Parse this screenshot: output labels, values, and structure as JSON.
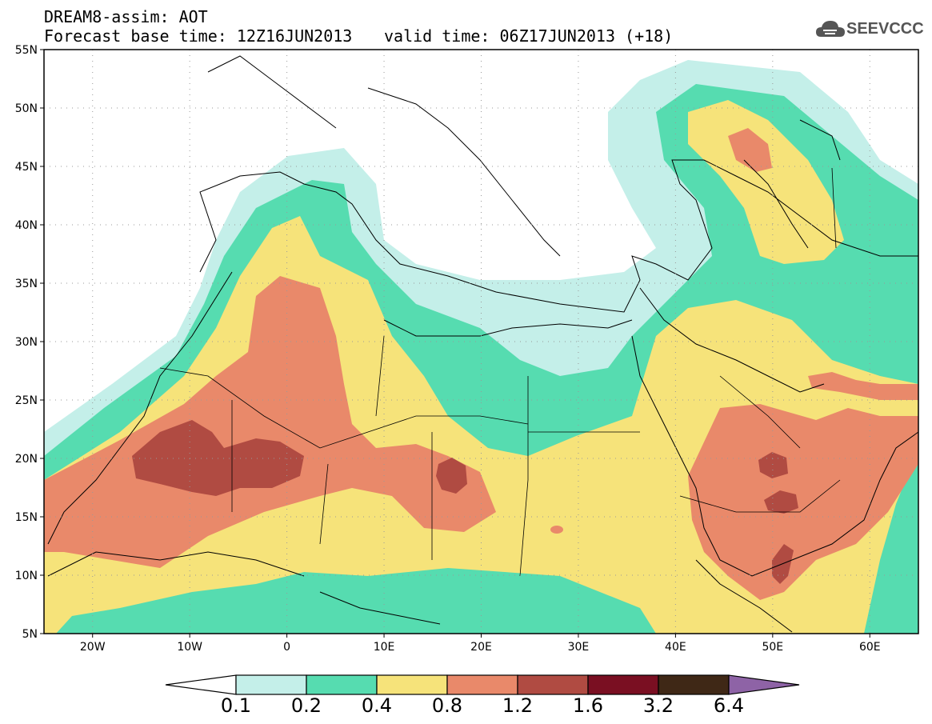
{
  "header": {
    "title_line1": "DREAM8-assim: AOT",
    "title_line2": "Forecast base time: 12Z16JUN2013",
    "valid_time": "valid time: 06Z17JUN2013 (+18)",
    "logo_text": "SEEVCCC",
    "logo_icon": "cloud-icon"
  },
  "map": {
    "lon_range": [
      -25,
      65
    ],
    "lat_range": [
      5,
      55
    ],
    "lat_labels": [
      "55N",
      "50N",
      "45N",
      "40N",
      "35N",
      "30N",
      "25N",
      "20N",
      "15N",
      "10N",
      "5N"
    ],
    "lon_labels": [
      "20W",
      "10W",
      "0",
      "10E",
      "20E",
      "30E",
      "40E",
      "50E",
      "60E"
    ]
  },
  "colorbar": {
    "levels": [
      "0.1",
      "0.2",
      "0.4",
      "0.8",
      "1.2",
      "1.6",
      "3.2",
      "6.4"
    ],
    "colors": [
      "#c4efe9",
      "#56dcb0",
      "#f6e37a",
      "#e9896a",
      "#b04b42",
      "#7a0f22",
      "#3f2816",
      "#8e63a6"
    ],
    "under_color": "#ffffff"
  }
}
